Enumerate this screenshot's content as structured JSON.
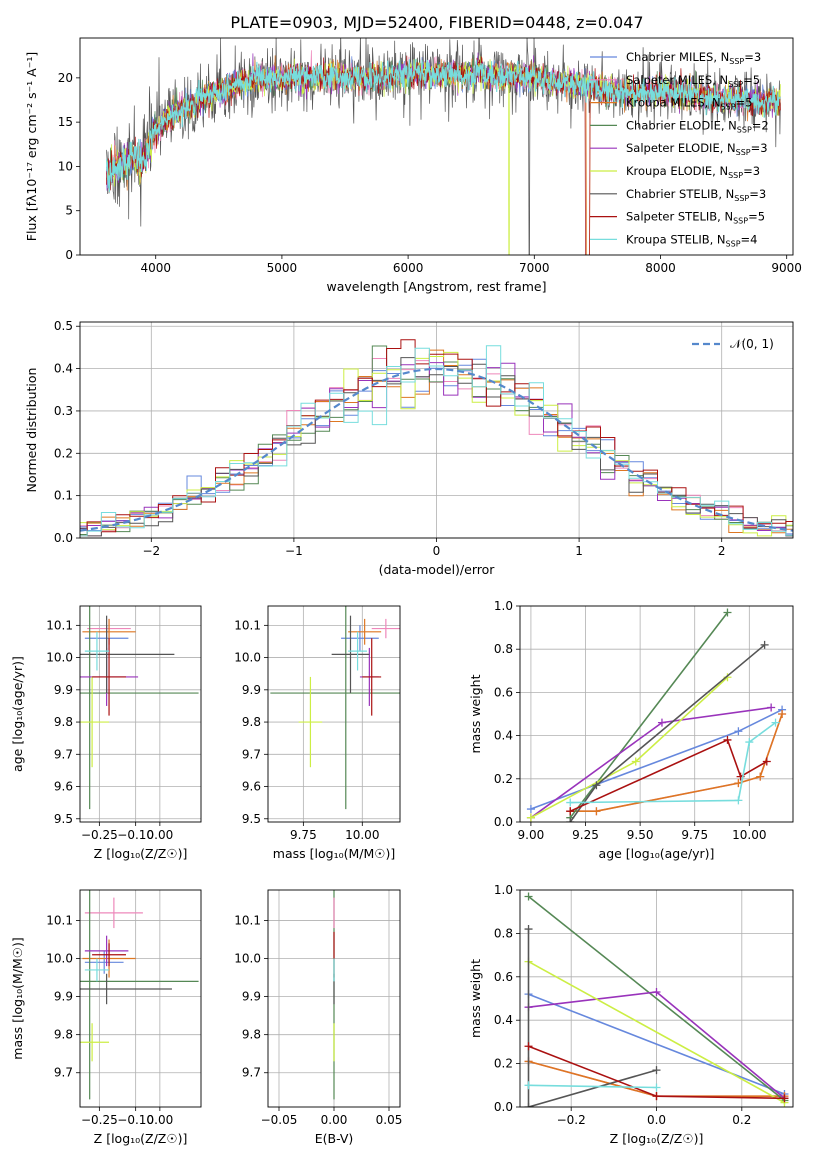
{
  "title": "PLATE=0903, MJD=52400, FIBERID=0448, z=0.047",
  "colors": [
    "#6688dd",
    "#ee88bb",
    "#dd7722",
    "#558855",
    "#9933bb",
    "#ccee44",
    "#555555",
    "#aa1111",
    "#77dddd"
  ],
  "chart_data": [
    {
      "id": "spectrum",
      "type": "line",
      "xlabel": "wavelength [Angstrom, rest frame]",
      "ylabel": "Flux [fλ10⁻¹⁷ erg cm⁻² s⁻¹ A⁻¹]",
      "xlim": [
        3400,
        9050
      ],
      "ylim": [
        0,
        24.5
      ],
      "xticks": [
        "4000",
        "5000",
        "6000",
        "7000",
        "8000",
        "9000"
      ],
      "yticks": [
        "0",
        "5",
        "10",
        "15",
        "20"
      ],
      "legend_position": "upper right",
      "series": [
        {
          "label": "Chabrier MILES, N",
          "sub": "SSP",
          "suffix": "=3"
        },
        {
          "label": "Salpeter MILES, N",
          "sub": "SSP",
          "suffix": "=5"
        },
        {
          "label": "Kroupa MILES, N",
          "sub": "SSP",
          "suffix": "=5"
        },
        {
          "label": "Chabrier ELODIE, N",
          "sub": "SSP",
          "suffix": "=2"
        },
        {
          "label": "Salpeter ELODIE, N",
          "sub": "SSP",
          "suffix": "=3"
        },
        {
          "label": "Kroupa ELODIE, N",
          "sub": "SSP",
          "suffix": "=3"
        },
        {
          "label": "Chabrier STELIB, N",
          "sub": "SSP",
          "suffix": "=3"
        },
        {
          "label": "Salpeter STELIB, N",
          "sub": "SSP",
          "suffix": "=5"
        },
        {
          "label": "Kroupa STELIB, N",
          "sub": "SSP",
          "suffix": "=4"
        }
      ],
      "continuum": {
        "x": [
          3600,
          3700,
          3800,
          3900,
          4000,
          4100,
          4200,
          4300,
          4400,
          4500,
          4600,
          4700,
          4800,
          4900,
          5000,
          5200,
          5400,
          5600,
          5800,
          6000,
          6200,
          6400,
          6600,
          6800,
          7000,
          7200,
          7400,
          7600,
          7800,
          8000,
          8200,
          8400,
          8600,
          8800,
          8950
        ],
        "y": [
          9,
          10,
          11,
          10.5,
          14,
          15.5,
          16.5,
          17,
          18,
          18.5,
          19,
          19.5,
          20,
          20,
          20,
          20,
          20.2,
          20,
          20,
          20.5,
          20.5,
          20.3,
          20.2,
          20.3,
          20,
          19.5,
          19.2,
          18.5,
          18.3,
          18.5,
          18.3,
          17.8,
          17.5,
          17.2,
          17.5
        ]
      },
      "dips": [
        {
          "series": 5,
          "x": 6800,
          "y": 0
        },
        {
          "series": 2,
          "x": 7420,
          "y": 0
        },
        {
          "series": 7,
          "x": 7410,
          "y": 0
        },
        {
          "series": 6,
          "x": 6960,
          "y": 0
        }
      ]
    },
    {
      "id": "residuals",
      "type": "histogram",
      "xlabel": "(data-model)/error",
      "ylabel": "Normed distribution",
      "xlim": [
        -2.5,
        2.5
      ],
      "ylim": [
        0,
        0.51
      ],
      "xticks": [
        "−2",
        "−1",
        "0",
        "1",
        "2"
      ],
      "yticks": [
        "0.0",
        "0.1",
        "0.2",
        "0.3",
        "0.4",
        "0.5"
      ],
      "reference_label": "𝒩(0, 1)",
      "bin_width": 0.1
    },
    {
      "id": "age_vs_z",
      "type": "errorbar",
      "xlabel": "Z [log₁₀(Z/Z☉)]",
      "ylabel": "age  [log₁₀(age/yr)]",
      "xlim": [
        -0.33,
        0.17
      ],
      "ylim": [
        9.49,
        10.16
      ],
      "xticks": [
        "−0.25",
        "−0.10",
        "0.00"
      ],
      "xtick_values": [
        -0.25,
        -0.1,
        0
      ],
      "yticks": [
        "9.5",
        "9.6",
        "9.7",
        "9.8",
        "9.9",
        "10.0",
        "10.1"
      ],
      "ytick_values": [
        9.5,
        9.6,
        9.7,
        9.8,
        9.9,
        10.0,
        10.1
      ],
      "points": [
        {
          "s": 0,
          "x": -0.22,
          "y": 10.06,
          "xerr": 0.09,
          "yerr": 0.04
        },
        {
          "s": 1,
          "x": -0.21,
          "y": 10.09,
          "xerr": 0.09,
          "yerr": 0.03
        },
        {
          "s": 2,
          "x": -0.21,
          "y": 10.08,
          "xerr": 0.11,
          "yerr": 0.04
        },
        {
          "s": 3,
          "x": -0.29,
          "y": 9.89,
          "xerr": 0.45,
          "yerr": 0.36
        },
        {
          "s": 4,
          "x": -0.22,
          "y": 9.94,
          "xerr": 0.13,
          "yerr": 0.09
        },
        {
          "s": 5,
          "x": -0.28,
          "y": 9.8,
          "xerr": 0.07,
          "yerr": 0.14
        },
        {
          "s": 6,
          "x": -0.22,
          "y": 10.01,
          "xerr": 0.28,
          "yerr": 0.12
        },
        {
          "s": 7,
          "x": -0.21,
          "y": 9.94,
          "xerr": 0.07,
          "yerr": 0.12
        },
        {
          "s": 8,
          "x": -0.26,
          "y": 10.02,
          "xerr": 0.05,
          "yerr": 0.06
        }
      ]
    },
    {
      "id": "age_vs_mass",
      "type": "errorbar",
      "xlabel": "mass [log₁₀(M/M☉)]",
      "ylabel": "",
      "xlim": [
        9.6,
        10.16
      ],
      "ylim": [
        9.49,
        10.16
      ],
      "xticks": [
        "9.75",
        "10.00"
      ],
      "xtick_values": [
        9.75,
        10.0
      ],
      "yticks": [
        "9.5",
        "9.6",
        "9.7",
        "9.8",
        "9.9",
        "10.0",
        "10.1"
      ],
      "ytick_values": [
        9.5,
        9.6,
        9.7,
        9.8,
        9.9,
        10.0,
        10.1
      ],
      "points": [
        {
          "s": 0,
          "x": 9.99,
          "y": 10.06,
          "xerr": 0.08,
          "yerr": 0.04
        },
        {
          "s": 1,
          "x": 10.1,
          "y": 10.09,
          "xerr": 0.06,
          "yerr": 0.03
        },
        {
          "s": 2,
          "x": 10.01,
          "y": 10.08,
          "xerr": 0.07,
          "yerr": 0.04
        },
        {
          "s": 3,
          "x": 9.93,
          "y": 9.89,
          "xerr": 0.32,
          "yerr": 0.36
        },
        {
          "s": 4,
          "x": 10.03,
          "y": 9.94,
          "xerr": 0.04,
          "yerr": 0.09
        },
        {
          "s": 5,
          "x": 9.78,
          "y": 9.8,
          "xerr": 0.05,
          "yerr": 0.14
        },
        {
          "s": 6,
          "x": 9.95,
          "y": 10.01,
          "xerr": 0.08,
          "yerr": 0.12
        },
        {
          "s": 7,
          "x": 10.04,
          "y": 9.94,
          "xerr": 0.04,
          "yerr": 0.12
        },
        {
          "s": 8,
          "x": 9.98,
          "y": 10.02,
          "xerr": 0.04,
          "yerr": 0.06
        }
      ]
    },
    {
      "id": "mass_weight_vs_age",
      "type": "line",
      "xlabel": "age  [log₁₀(age/yr)]",
      "ylabel": "mass weight",
      "xlim": [
        8.95,
        10.2
      ],
      "ylim": [
        0,
        1.0
      ],
      "xticks": [
        "9.00",
        "9.25",
        "9.50",
        "9.75",
        "10.00"
      ],
      "xtick_values": [
        9.0,
        9.25,
        9.5,
        9.75,
        10.0
      ],
      "yticks": [
        "0.0",
        "0.2",
        "0.4",
        "0.6",
        "0.8",
        "1.0"
      ],
      "ytick_values": [
        0,
        0.2,
        0.4,
        0.6,
        0.8,
        1.0
      ],
      "series": [
        {
          "s": 0,
          "x": [
            9.0,
            9.95,
            10.15
          ],
          "y": [
            0.06,
            0.42,
            0.52
          ]
        },
        {
          "s": 1,
          "x": [
            9.18,
            9.3,
            9.95,
            10.05,
            10.15
          ],
          "y": [
            0.05,
            0.05,
            0.18,
            0.21,
            0.5
          ]
        },
        {
          "s": 2,
          "x": [
            9.18,
            9.3,
            9.95,
            10.05,
            10.15
          ],
          "y": [
            0.05,
            0.05,
            0.18,
            0.21,
            0.5
          ]
        },
        {
          "s": 3,
          "x": [
            9.18,
            9.9
          ],
          "y": [
            0.02,
            0.97
          ]
        },
        {
          "s": 4,
          "x": [
            9.0,
            9.6,
            10.1
          ],
          "y": [
            0.02,
            0.46,
            0.53
          ]
        },
        {
          "s": 5,
          "x": [
            9.0,
            9.48,
            9.9
          ],
          "y": [
            0.02,
            0.28,
            0.67
          ]
        },
        {
          "s": 6,
          "x": [
            9.18,
            9.3,
            10.07
          ],
          "y": [
            0.0,
            0.17,
            0.82
          ]
        },
        {
          "s": 7,
          "x": [
            9.18,
            9.9,
            9.96,
            10.08
          ],
          "y": [
            0.05,
            0.38,
            0.21,
            0.28
          ]
        },
        {
          "s": 8,
          "x": [
            9.18,
            9.95,
            10.0,
            10.12
          ],
          "y": [
            0.09,
            0.1,
            0.37,
            0.46
          ]
        }
      ]
    },
    {
      "id": "mass_vs_z",
      "type": "errorbar",
      "xlabel": "Z [log₁₀(Z/Z☉)]",
      "ylabel": "mass [log₁₀(M/M☉)]",
      "xlim": [
        -0.33,
        0.17
      ],
      "ylim": [
        9.61,
        10.18
      ],
      "xticks": [
        "−0.25",
        "−0.10",
        "0.00"
      ],
      "xtick_values": [
        -0.25,
        -0.1,
        0
      ],
      "yticks": [
        "9.7",
        "9.8",
        "9.9",
        "10.0",
        "10.1"
      ],
      "ytick_values": [
        9.7,
        9.8,
        9.9,
        10.0,
        10.1
      ],
      "points": [
        {
          "s": 0,
          "x": -0.23,
          "y": 9.99,
          "xerr": 0.08,
          "yerr": 0.03
        },
        {
          "s": 1,
          "x": -0.19,
          "y": 10.12,
          "xerr": 0.12,
          "yerr": 0.04
        },
        {
          "s": 2,
          "x": -0.21,
          "y": 10.0,
          "xerr": 0.11,
          "yerr": 0.05
        },
        {
          "s": 3,
          "x": -0.29,
          "y": 9.94,
          "xerr": 0.45,
          "yerr": 0.31
        },
        {
          "s": 4,
          "x": -0.22,
          "y": 10.02,
          "xerr": 0.09,
          "yerr": 0.04
        },
        {
          "s": 5,
          "x": -0.28,
          "y": 9.78,
          "xerr": 0.07,
          "yerr": 0.05
        },
        {
          "s": 6,
          "x": -0.22,
          "y": 9.92,
          "xerr": 0.27,
          "yerr": 0.04
        },
        {
          "s": 7,
          "x": -0.21,
          "y": 10.01,
          "xerr": 0.07,
          "yerr": 0.03
        },
        {
          "s": 8,
          "x": -0.26,
          "y": 9.97,
          "xerr": 0.05,
          "yerr": 0.03
        }
      ]
    },
    {
      "id": "mass_vs_ebv",
      "type": "errorbar",
      "xlabel": "E(B-V)",
      "ylabel": "",
      "xlim": [
        -0.06,
        0.06
      ],
      "ylim": [
        9.61,
        10.18
      ],
      "xticks": [
        "−0.05",
        "0.00",
        "0.05"
      ],
      "xtick_values": [
        -0.05,
        0,
        0.05
      ],
      "yticks": [
        "9.7",
        "9.8",
        "9.9",
        "10.0",
        "10.1"
      ],
      "ytick_values": [
        9.7,
        9.8,
        9.9,
        10.0,
        10.1
      ],
      "points": [
        {
          "s": 3,
          "x": 0.0,
          "y": 9.94,
          "xerr": 0,
          "yerr": 0.31
        },
        {
          "s": 5,
          "x": 0.0,
          "y": 9.78,
          "xerr": 0,
          "yerr": 0.05
        },
        {
          "s": 1,
          "x": 0.0,
          "y": 10.12,
          "xerr": 0,
          "yerr": 0.04
        },
        {
          "s": 6,
          "x": 0.0,
          "y": 9.92,
          "xerr": 0,
          "yerr": 0.04
        },
        {
          "s": 7,
          "x": 0.0,
          "y": 10.01,
          "xerr": 0,
          "yerr": 0.06
        },
        {
          "s": 8,
          "x": 0.0,
          "y": 9.97,
          "xerr": 0,
          "yerr": 0.03
        }
      ]
    },
    {
      "id": "mass_weight_vs_z",
      "type": "line",
      "xlabel": "Z [log₁₀(Z/Z☉)]",
      "ylabel": "mass weight",
      "xlim": [
        -0.32,
        0.32
      ],
      "ylim": [
        0,
        1.0
      ],
      "xticks": [
        "−0.2",
        "0.0",
        "0.2"
      ],
      "xtick_values": [
        -0.2,
        0,
        0.2
      ],
      "yticks": [
        "0.0",
        "0.2",
        "0.4",
        "0.6",
        "0.8",
        "1.0"
      ],
      "ytick_values": [
        0,
        0.2,
        0.4,
        0.6,
        0.8,
        1.0
      ],
      "series": [
        {
          "s": 0,
          "x": [
            -0.3,
            0.3
          ],
          "y": [
            0.52,
            0.06
          ]
        },
        {
          "s": 1,
          "x": [
            -0.3,
            0.0,
            0.3
          ],
          "y": [
            0.21,
            0.05,
            0.05
          ]
        },
        {
          "s": 2,
          "x": [
            -0.3,
            0.0,
            0.3
          ],
          "y": [
            0.21,
            0.05,
            0.05
          ]
        },
        {
          "s": 3,
          "x": [
            -0.3,
            0.3
          ],
          "y": [
            0.97,
            0.03
          ]
        },
        {
          "s": 4,
          "x": [
            -0.3,
            0.0,
            0.3
          ],
          "y": [
            0.46,
            0.53,
            0.04
          ]
        },
        {
          "s": 5,
          "x": [
            -0.3,
            0.3
          ],
          "y": [
            0.67,
            0.02
          ]
        },
        {
          "s": 6,
          "x": [
            -0.3,
            -0.3,
            0.0
          ],
          "y": [
            0.82,
            0.0,
            0.17
          ]
        },
        {
          "s": 7,
          "x": [
            -0.3,
            0.0,
            0.3
          ],
          "y": [
            0.28,
            0.05,
            0.04
          ]
        },
        {
          "s": 8,
          "x": [
            -0.3,
            0.0
          ],
          "y": [
            0.1,
            0.09
          ]
        }
      ]
    }
  ]
}
